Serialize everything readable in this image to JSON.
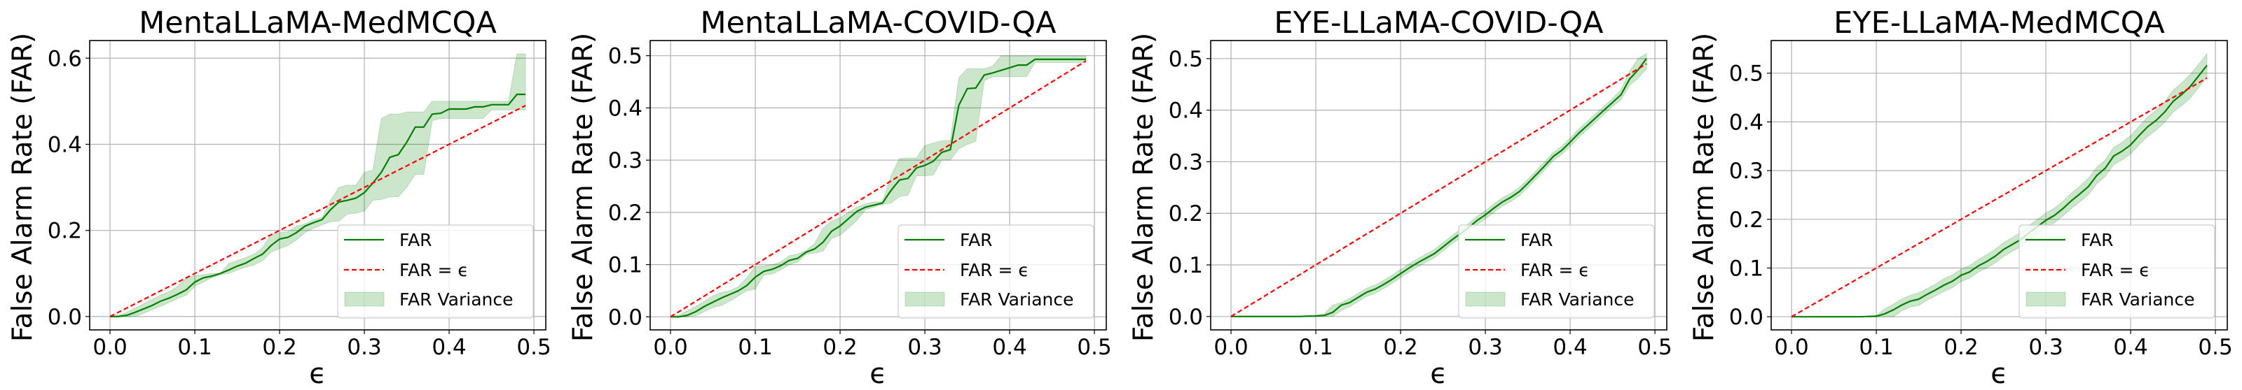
{
  "chart_data": [
    {
      "type": "line",
      "title": "MentaLLaMA-MedMCQA",
      "xlabel": "ϵ",
      "ylabel": "False Alarm Rate (FAR)",
      "xlim": [
        -0.024,
        0.514
      ],
      "ylim": [
        -0.031,
        0.641
      ],
      "xticks": [
        "0.0",
        "0.1",
        "0.2",
        "0.3",
        "0.4",
        "0.5"
      ],
      "yticks": [
        "0.0",
        "0.2",
        "0.4",
        "0.6"
      ],
      "grid": true,
      "legend": {
        "placement": "lower-right",
        "entries": [
          "FAR",
          "FAR = ϵ",
          "FAR Variance"
        ]
      },
      "x": [
        0,
        0.01,
        0.02,
        0.03,
        0.04,
        0.05,
        0.06,
        0.07,
        0.08,
        0.09,
        0.1,
        0.11,
        0.12,
        0.13,
        0.14,
        0.15,
        0.16,
        0.17,
        0.18,
        0.19,
        0.2,
        0.21,
        0.22,
        0.23,
        0.24,
        0.25,
        0.26,
        0.27,
        0.28,
        0.29,
        0.3,
        0.31,
        0.32,
        0.33,
        0.34,
        0.35,
        0.36,
        0.37,
        0.38,
        0.39,
        0.4,
        0.41,
        0.42,
        0.43,
        0.44,
        0.45,
        0.46,
        0.47,
        0.48,
        0.49
      ],
      "series": [
        {
          "name": "FAR",
          "values": [
            0,
            0,
            0.003,
            0.01,
            0.018,
            0.026,
            0.036,
            0.043,
            0.052,
            0.062,
            0.08,
            0.09,
            0.094,
            0.1,
            0.108,
            0.117,
            0.124,
            0.135,
            0.145,
            0.165,
            0.18,
            0.184,
            0.195,
            0.21,
            0.218,
            0.225,
            0.248,
            0.266,
            0.27,
            0.275,
            0.288,
            0.31,
            0.335,
            0.37,
            0.376,
            0.405,
            0.44,
            0.44,
            0.47,
            0.472,
            0.482,
            0.482,
            0.482,
            0.487,
            0.487,
            0.492,
            0.492,
            0.492,
            0.516,
            0.516
          ]
        },
        {
          "name": "FAR = ϵ",
          "values": [
            0,
            0.01,
            0.02,
            0.03,
            0.04,
            0.05,
            0.06,
            0.07,
            0.08,
            0.09,
            0.1,
            0.11,
            0.12,
            0.13,
            0.14,
            0.15,
            0.16,
            0.17,
            0.18,
            0.19,
            0.2,
            0.21,
            0.22,
            0.23,
            0.24,
            0.25,
            0.26,
            0.27,
            0.28,
            0.29,
            0.3,
            0.31,
            0.32,
            0.33,
            0.34,
            0.35,
            0.36,
            0.37,
            0.38,
            0.39,
            0.4,
            0.41,
            0.42,
            0.43,
            0.44,
            0.45,
            0.46,
            0.47,
            0.48,
            0.49
          ]
        }
      ],
      "variance_upper": [
        0,
        0.003,
        0.01,
        0.02,
        0.03,
        0.04,
        0.05,
        0.058,
        0.07,
        0.09,
        0.095,
        0.097,
        0.1,
        0.1,
        0.123,
        0.13,
        0.137,
        0.145,
        0.16,
        0.19,
        0.195,
        0.197,
        0.21,
        0.215,
        0.225,
        0.23,
        0.27,
        0.3,
        0.305,
        0.305,
        0.335,
        0.34,
        0.46,
        0.47,
        0.47,
        0.475,
        0.475,
        0.475,
        0.5,
        0.5,
        0.5,
        0.5,
        0.5,
        0.5,
        0.5,
        0.5,
        0.5,
        0.5,
        0.61,
        0.61
      ],
      "variance_lower": [
        0,
        0,
        0,
        0,
        0.008,
        0.016,
        0.024,
        0.033,
        0.042,
        0.05,
        0.07,
        0.08,
        0.09,
        0.097,
        0.1,
        0.108,
        0.115,
        0.12,
        0.13,
        0.15,
        0.158,
        0.165,
        0.178,
        0.195,
        0.205,
        0.213,
        0.22,
        0.222,
        0.238,
        0.24,
        0.245,
        0.27,
        0.272,
        0.278,
        0.278,
        0.3,
        0.33,
        0.33,
        0.455,
        0.46,
        0.46,
        0.46,
        0.46,
        0.46,
        0.46,
        0.48,
        0.48,
        0.48,
        0.48,
        0.48
      ]
    },
    {
      "type": "line",
      "title": "MentaLLaMA-COVID-QA",
      "xlabel": "ϵ",
      "ylabel": "False Alarm Rate (FAR)",
      "xlim": [
        -0.024,
        0.514
      ],
      "ylim": [
        -0.025,
        0.529
      ],
      "xticks": [
        "0.0",
        "0.1",
        "0.2",
        "0.3",
        "0.4",
        "0.5"
      ],
      "yticks": [
        "0.0",
        "0.1",
        "0.2",
        "0.3",
        "0.4",
        "0.5"
      ],
      "grid": true,
      "legend": {
        "placement": "lower-right",
        "entries": [
          "FAR",
          "FAR = ϵ",
          "FAR Variance"
        ]
      },
      "x": [
        0,
        0.01,
        0.02,
        0.03,
        0.04,
        0.05,
        0.06,
        0.07,
        0.08,
        0.09,
        0.1,
        0.11,
        0.12,
        0.13,
        0.14,
        0.15,
        0.16,
        0.17,
        0.18,
        0.19,
        0.2,
        0.21,
        0.22,
        0.23,
        0.24,
        0.25,
        0.26,
        0.27,
        0.28,
        0.29,
        0.3,
        0.31,
        0.32,
        0.33,
        0.34,
        0.35,
        0.36,
        0.37,
        0.38,
        0.39,
        0.4,
        0.41,
        0.42,
        0.43,
        0.44,
        0.45,
        0.46,
        0.47,
        0.48,
        0.49
      ],
      "series": [
        {
          "name": "FAR",
          "values": [
            0,
            0,
            0.003,
            0.01,
            0.02,
            0.028,
            0.036,
            0.043,
            0.05,
            0.06,
            0.076,
            0.087,
            0.091,
            0.098,
            0.108,
            0.112,
            0.124,
            0.13,
            0.143,
            0.164,
            0.174,
            0.188,
            0.202,
            0.21,
            0.214,
            0.218,
            0.242,
            0.262,
            0.265,
            0.285,
            0.29,
            0.298,
            0.315,
            0.32,
            0.405,
            0.437,
            0.438,
            0.463,
            0.467,
            0.472,
            0.477,
            0.482,
            0.482,
            0.493,
            0.493,
            0.493,
            0.493,
            0.493,
            0.493,
            0.493
          ]
        },
        {
          "name": "FAR = ϵ",
          "values": [
            0,
            0.01,
            0.02,
            0.03,
            0.04,
            0.05,
            0.06,
            0.07,
            0.08,
            0.09,
            0.1,
            0.11,
            0.12,
            0.13,
            0.14,
            0.15,
            0.16,
            0.17,
            0.18,
            0.19,
            0.2,
            0.21,
            0.22,
            0.23,
            0.24,
            0.25,
            0.26,
            0.27,
            0.28,
            0.29,
            0.3,
            0.31,
            0.32,
            0.33,
            0.34,
            0.35,
            0.36,
            0.37,
            0.38,
            0.39,
            0.4,
            0.41,
            0.42,
            0.43,
            0.44,
            0.45,
            0.46,
            0.47,
            0.48,
            0.49
          ]
        }
      ],
      "variance_upper": [
        0,
        0.003,
        0.012,
        0.02,
        0.03,
        0.04,
        0.047,
        0.05,
        0.058,
        0.075,
        0.097,
        0.097,
        0.1,
        0.105,
        0.117,
        0.12,
        0.127,
        0.14,
        0.17,
        0.183,
        0.19,
        0.2,
        0.21,
        0.216,
        0.22,
        0.22,
        0.27,
        0.303,
        0.304,
        0.304,
        0.328,
        0.333,
        0.337,
        0.338,
        0.458,
        0.475,
        0.475,
        0.475,
        0.48,
        0.5,
        0.5,
        0.5,
        0.5,
        0.5,
        0.5,
        0.5,
        0.5,
        0.5,
        0.5,
        0.5
      ],
      "variance_lower": [
        0,
        0,
        0,
        0.002,
        0.01,
        0.018,
        0.022,
        0.03,
        0.04,
        0.05,
        0.053,
        0.08,
        0.082,
        0.09,
        0.1,
        0.105,
        0.12,
        0.122,
        0.126,
        0.15,
        0.156,
        0.17,
        0.185,
        0.205,
        0.21,
        0.215,
        0.218,
        0.23,
        0.233,
        0.27,
        0.27,
        0.272,
        0.3,
        0.3,
        0.322,
        0.33,
        0.336,
        0.452,
        0.46,
        0.46,
        0.46,
        0.46,
        0.46,
        0.487,
        0.487,
        0.487,
        0.487,
        0.487,
        0.487,
        0.487
      ]
    },
    {
      "type": "line",
      "title": "EYE-LLaMA-COVID-QA",
      "xlabel": "ϵ",
      "ylabel": "False Alarm Rate (FAR)",
      "xlim": [
        -0.024,
        0.514
      ],
      "ylim": [
        -0.026,
        0.535
      ],
      "xticks": [
        "0.0",
        "0.1",
        "0.2",
        "0.3",
        "0.4",
        "0.5"
      ],
      "yticks": [
        "0.0",
        "0.1",
        "0.2",
        "0.3",
        "0.4",
        "0.5"
      ],
      "grid": true,
      "legend": {
        "placement": "lower-right",
        "entries": [
          "FAR",
          "FAR = ϵ",
          "FAR Variance"
        ]
      },
      "x": [
        0,
        0.01,
        0.02,
        0.03,
        0.04,
        0.05,
        0.06,
        0.07,
        0.08,
        0.09,
        0.1,
        0.11,
        0.12,
        0.13,
        0.14,
        0.15,
        0.16,
        0.17,
        0.18,
        0.19,
        0.2,
        0.21,
        0.22,
        0.23,
        0.24,
        0.25,
        0.26,
        0.27,
        0.28,
        0.29,
        0.3,
        0.31,
        0.32,
        0.33,
        0.34,
        0.35,
        0.36,
        0.37,
        0.38,
        0.39,
        0.4,
        0.41,
        0.42,
        0.43,
        0.44,
        0.45,
        0.46,
        0.47,
        0.48,
        0.49
      ],
      "series": [
        {
          "name": "FAR",
          "values": [
            0,
            0,
            0,
            0,
            0,
            0,
            0,
            0,
            0,
            0.0005,
            0.001,
            0.002,
            0.008,
            0.022,
            0.027,
            0.037,
            0.047,
            0.053,
            0.062,
            0.072,
            0.083,
            0.094,
            0.104,
            0.113,
            0.122,
            0.135,
            0.148,
            0.16,
            0.172,
            0.186,
            0.197,
            0.21,
            0.222,
            0.231,
            0.242,
            0.258,
            0.275,
            0.292,
            0.31,
            0.322,
            0.338,
            0.355,
            0.37,
            0.385,
            0.4,
            0.415,
            0.43,
            0.46,
            0.478,
            0.5
          ]
        },
        {
          "name": "FAR = ϵ",
          "values": [
            0,
            0.01,
            0.02,
            0.03,
            0.04,
            0.05,
            0.06,
            0.07,
            0.08,
            0.09,
            0.1,
            0.11,
            0.12,
            0.13,
            0.14,
            0.15,
            0.16,
            0.17,
            0.18,
            0.19,
            0.2,
            0.21,
            0.22,
            0.23,
            0.24,
            0.25,
            0.26,
            0.27,
            0.28,
            0.29,
            0.3,
            0.31,
            0.32,
            0.33,
            0.34,
            0.35,
            0.36,
            0.37,
            0.38,
            0.39,
            0.4,
            0.41,
            0.42,
            0.43,
            0.44,
            0.45,
            0.46,
            0.47,
            0.48,
            0.49
          ]
        }
      ],
      "variance_upper": [
        0,
        0,
        0,
        0,
        0,
        0,
        0,
        0,
        0,
        0.001,
        0.002,
        0.005,
        0.022,
        0.027,
        0.035,
        0.045,
        0.055,
        0.061,
        0.07,
        0.08,
        0.091,
        0.102,
        0.112,
        0.121,
        0.13,
        0.143,
        0.156,
        0.168,
        0.18,
        0.194,
        0.205,
        0.218,
        0.23,
        0.239,
        0.25,
        0.266,
        0.283,
        0.3,
        0.318,
        0.33,
        0.346,
        0.363,
        0.378,
        0.393,
        0.408,
        0.423,
        0.44,
        0.475,
        0.5,
        0.51
      ],
      "variance_lower": [
        0,
        0,
        0,
        0,
        0,
        0,
        0,
        0,
        0,
        0,
        0,
        0,
        0,
        0.012,
        0.019,
        0.029,
        0.039,
        0.045,
        0.054,
        0.064,
        0.075,
        0.086,
        0.096,
        0.105,
        0.114,
        0.127,
        0.14,
        0.152,
        0.164,
        0.178,
        0.189,
        0.202,
        0.214,
        0.223,
        0.234,
        0.25,
        0.267,
        0.284,
        0.302,
        0.314,
        0.33,
        0.347,
        0.362,
        0.377,
        0.392,
        0.407,
        0.42,
        0.448,
        0.462,
        0.48
      ]
    },
    {
      "type": "line",
      "title": "EYE-LLaMA-MedMCQA",
      "xlabel": "ϵ",
      "ylabel": "False Alarm Rate (FAR)",
      "xlim": [
        -0.024,
        0.514
      ],
      "ylim": [
        -0.027,
        0.567
      ],
      "xticks": [
        "0.0",
        "0.1",
        "0.2",
        "0.3",
        "0.4",
        "0.5"
      ],
      "yticks": [
        "0.0",
        "0.1",
        "0.2",
        "0.3",
        "0.4",
        "0.5"
      ],
      "grid": true,
      "legend": {
        "placement": "lower-right",
        "entries": [
          "FAR",
          "FAR = ϵ",
          "FAR Variance"
        ]
      },
      "x": [
        0,
        0.01,
        0.02,
        0.03,
        0.04,
        0.05,
        0.06,
        0.07,
        0.08,
        0.09,
        0.1,
        0.11,
        0.12,
        0.13,
        0.14,
        0.15,
        0.16,
        0.17,
        0.18,
        0.19,
        0.2,
        0.21,
        0.22,
        0.23,
        0.24,
        0.25,
        0.26,
        0.27,
        0.28,
        0.29,
        0.3,
        0.31,
        0.32,
        0.33,
        0.34,
        0.35,
        0.36,
        0.37,
        0.38,
        0.39,
        0.4,
        0.41,
        0.42,
        0.43,
        0.44,
        0.45,
        0.46,
        0.47,
        0.48,
        0.49
      ],
      "series": [
        {
          "name": "FAR",
          "values": [
            0,
            0,
            0,
            0,
            0,
            0,
            0,
            0,
            0,
            0.0005,
            0.001,
            0.006,
            0.014,
            0.024,
            0.032,
            0.036,
            0.046,
            0.055,
            0.065,
            0.073,
            0.085,
            0.092,
            0.104,
            0.113,
            0.124,
            0.138,
            0.148,
            0.158,
            0.172,
            0.185,
            0.198,
            0.208,
            0.222,
            0.238,
            0.252,
            0.267,
            0.29,
            0.305,
            0.33,
            0.34,
            0.353,
            0.372,
            0.39,
            0.403,
            0.42,
            0.442,
            0.456,
            0.472,
            0.494,
            0.516
          ]
        },
        {
          "name": "FAR = ϵ",
          "values": [
            0,
            0.01,
            0.02,
            0.03,
            0.04,
            0.05,
            0.06,
            0.07,
            0.08,
            0.09,
            0.1,
            0.11,
            0.12,
            0.13,
            0.14,
            0.15,
            0.16,
            0.17,
            0.18,
            0.19,
            0.2,
            0.21,
            0.22,
            0.23,
            0.24,
            0.25,
            0.26,
            0.27,
            0.28,
            0.29,
            0.3,
            0.31,
            0.32,
            0.33,
            0.34,
            0.35,
            0.36,
            0.37,
            0.38,
            0.39,
            0.4,
            0.41,
            0.42,
            0.43,
            0.44,
            0.45,
            0.46,
            0.47,
            0.48,
            0.49
          ]
        }
      ],
      "variance_upper": [
        0,
        0,
        0,
        0,
        0,
        0,
        0,
        0,
        0,
        0.001,
        0.003,
        0.016,
        0.026,
        0.036,
        0.044,
        0.049,
        0.058,
        0.067,
        0.078,
        0.086,
        0.098,
        0.105,
        0.117,
        0.127,
        0.138,
        0.152,
        0.162,
        0.173,
        0.187,
        0.2,
        0.213,
        0.223,
        0.237,
        0.254,
        0.268,
        0.284,
        0.307,
        0.322,
        0.348,
        0.358,
        0.372,
        0.391,
        0.41,
        0.424,
        0.441,
        0.465,
        0.48,
        0.497,
        0.518,
        0.54
      ],
      "variance_lower": [
        0,
        0,
        0,
        0,
        0,
        0,
        0,
        0,
        0,
        0,
        0,
        0,
        0,
        0.012,
        0.02,
        0.023,
        0.034,
        0.043,
        0.052,
        0.06,
        0.072,
        0.079,
        0.091,
        0.1,
        0.11,
        0.124,
        0.134,
        0.143,
        0.157,
        0.17,
        0.183,
        0.193,
        0.207,
        0.222,
        0.236,
        0.25,
        0.273,
        0.288,
        0.312,
        0.322,
        0.334,
        0.353,
        0.37,
        0.383,
        0.399,
        0.42,
        0.433,
        0.448,
        0.47,
        0.492
      ]
    }
  ],
  "colors": {
    "far_line": "#008000",
    "far_fill": "#008000",
    "identity_line": "#ff0000",
    "grid": "#b0b0b0",
    "axes": "#000000"
  }
}
